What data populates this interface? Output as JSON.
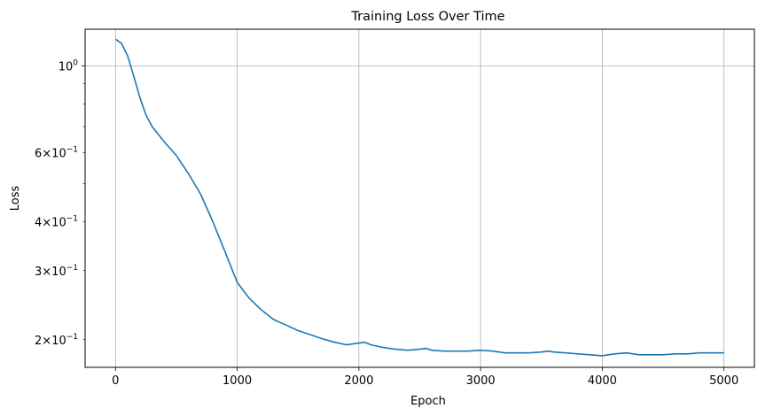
{
  "chart_data": {
    "type": "line",
    "title": "Training Loss Over Time",
    "xlabel": "Epoch",
    "ylabel": "Loss",
    "xlim": [
      -250,
      5250
    ],
    "ylim": [
      0.17,
      1.24
    ],
    "yscale": "log",
    "grid": true,
    "x_ticks": [
      {
        "value": 0,
        "label": "0"
      },
      {
        "value": 1000,
        "label": "1000"
      },
      {
        "value": 2000,
        "label": "2000"
      },
      {
        "value": 3000,
        "label": "3000"
      },
      {
        "value": 4000,
        "label": "4000"
      },
      {
        "value": 5000,
        "label": "5000"
      }
    ],
    "y_major_ticks": [
      {
        "value": 1.0,
        "base": "10",
        "exp": "0"
      }
    ],
    "y_minor_ticks": [
      {
        "value": 0.2,
        "mant": "2",
        "base": "10",
        "exp": "−1"
      },
      {
        "value": 0.3,
        "mant": "3",
        "base": "10",
        "exp": "−1"
      },
      {
        "value": 0.4,
        "mant": "4",
        "base": "10",
        "exp": "−1"
      },
      {
        "value": 0.6,
        "mant": "6",
        "base": "10",
        "exp": "−1"
      }
    ],
    "y_minor_unlabeled": [
      0.5,
      0.7,
      0.8,
      0.9
    ],
    "series": [
      {
        "color": "#1f77b4",
        "x": [
          0,
          50,
          100,
          150,
          200,
          250,
          300,
          400,
          500,
          600,
          700,
          800,
          900,
          1000,
          1100,
          1200,
          1300,
          1400,
          1500,
          1600,
          1700,
          1800,
          1900,
          2000,
          2050,
          2100,
          2200,
          2300,
          2400,
          2500,
          2550,
          2600,
          2700,
          2800,
          2900,
          3000,
          3100,
          3200,
          3300,
          3400,
          3500,
          3550,
          3600,
          3700,
          3800,
          3900,
          4000,
          4100,
          4200,
          4300,
          4400,
          4500,
          4600,
          4700,
          4800,
          4900,
          5000
        ],
        "y": [
          1.17,
          1.14,
          1.06,
          0.94,
          0.83,
          0.75,
          0.7,
          0.64,
          0.59,
          0.53,
          0.47,
          0.4,
          0.335,
          0.28,
          0.255,
          0.238,
          0.225,
          0.218,
          0.211,
          0.206,
          0.201,
          0.197,
          0.194,
          0.196,
          0.197,
          0.194,
          0.191,
          0.189,
          0.188,
          0.189,
          0.19,
          0.188,
          0.187,
          0.187,
          0.187,
          0.188,
          0.187,
          0.185,
          0.185,
          0.185,
          0.186,
          0.187,
          0.186,
          0.185,
          0.184,
          0.183,
          0.182,
          0.184,
          0.185,
          0.183,
          0.183,
          0.183,
          0.184,
          0.184,
          0.185,
          0.185,
          0.185
        ]
      }
    ]
  }
}
